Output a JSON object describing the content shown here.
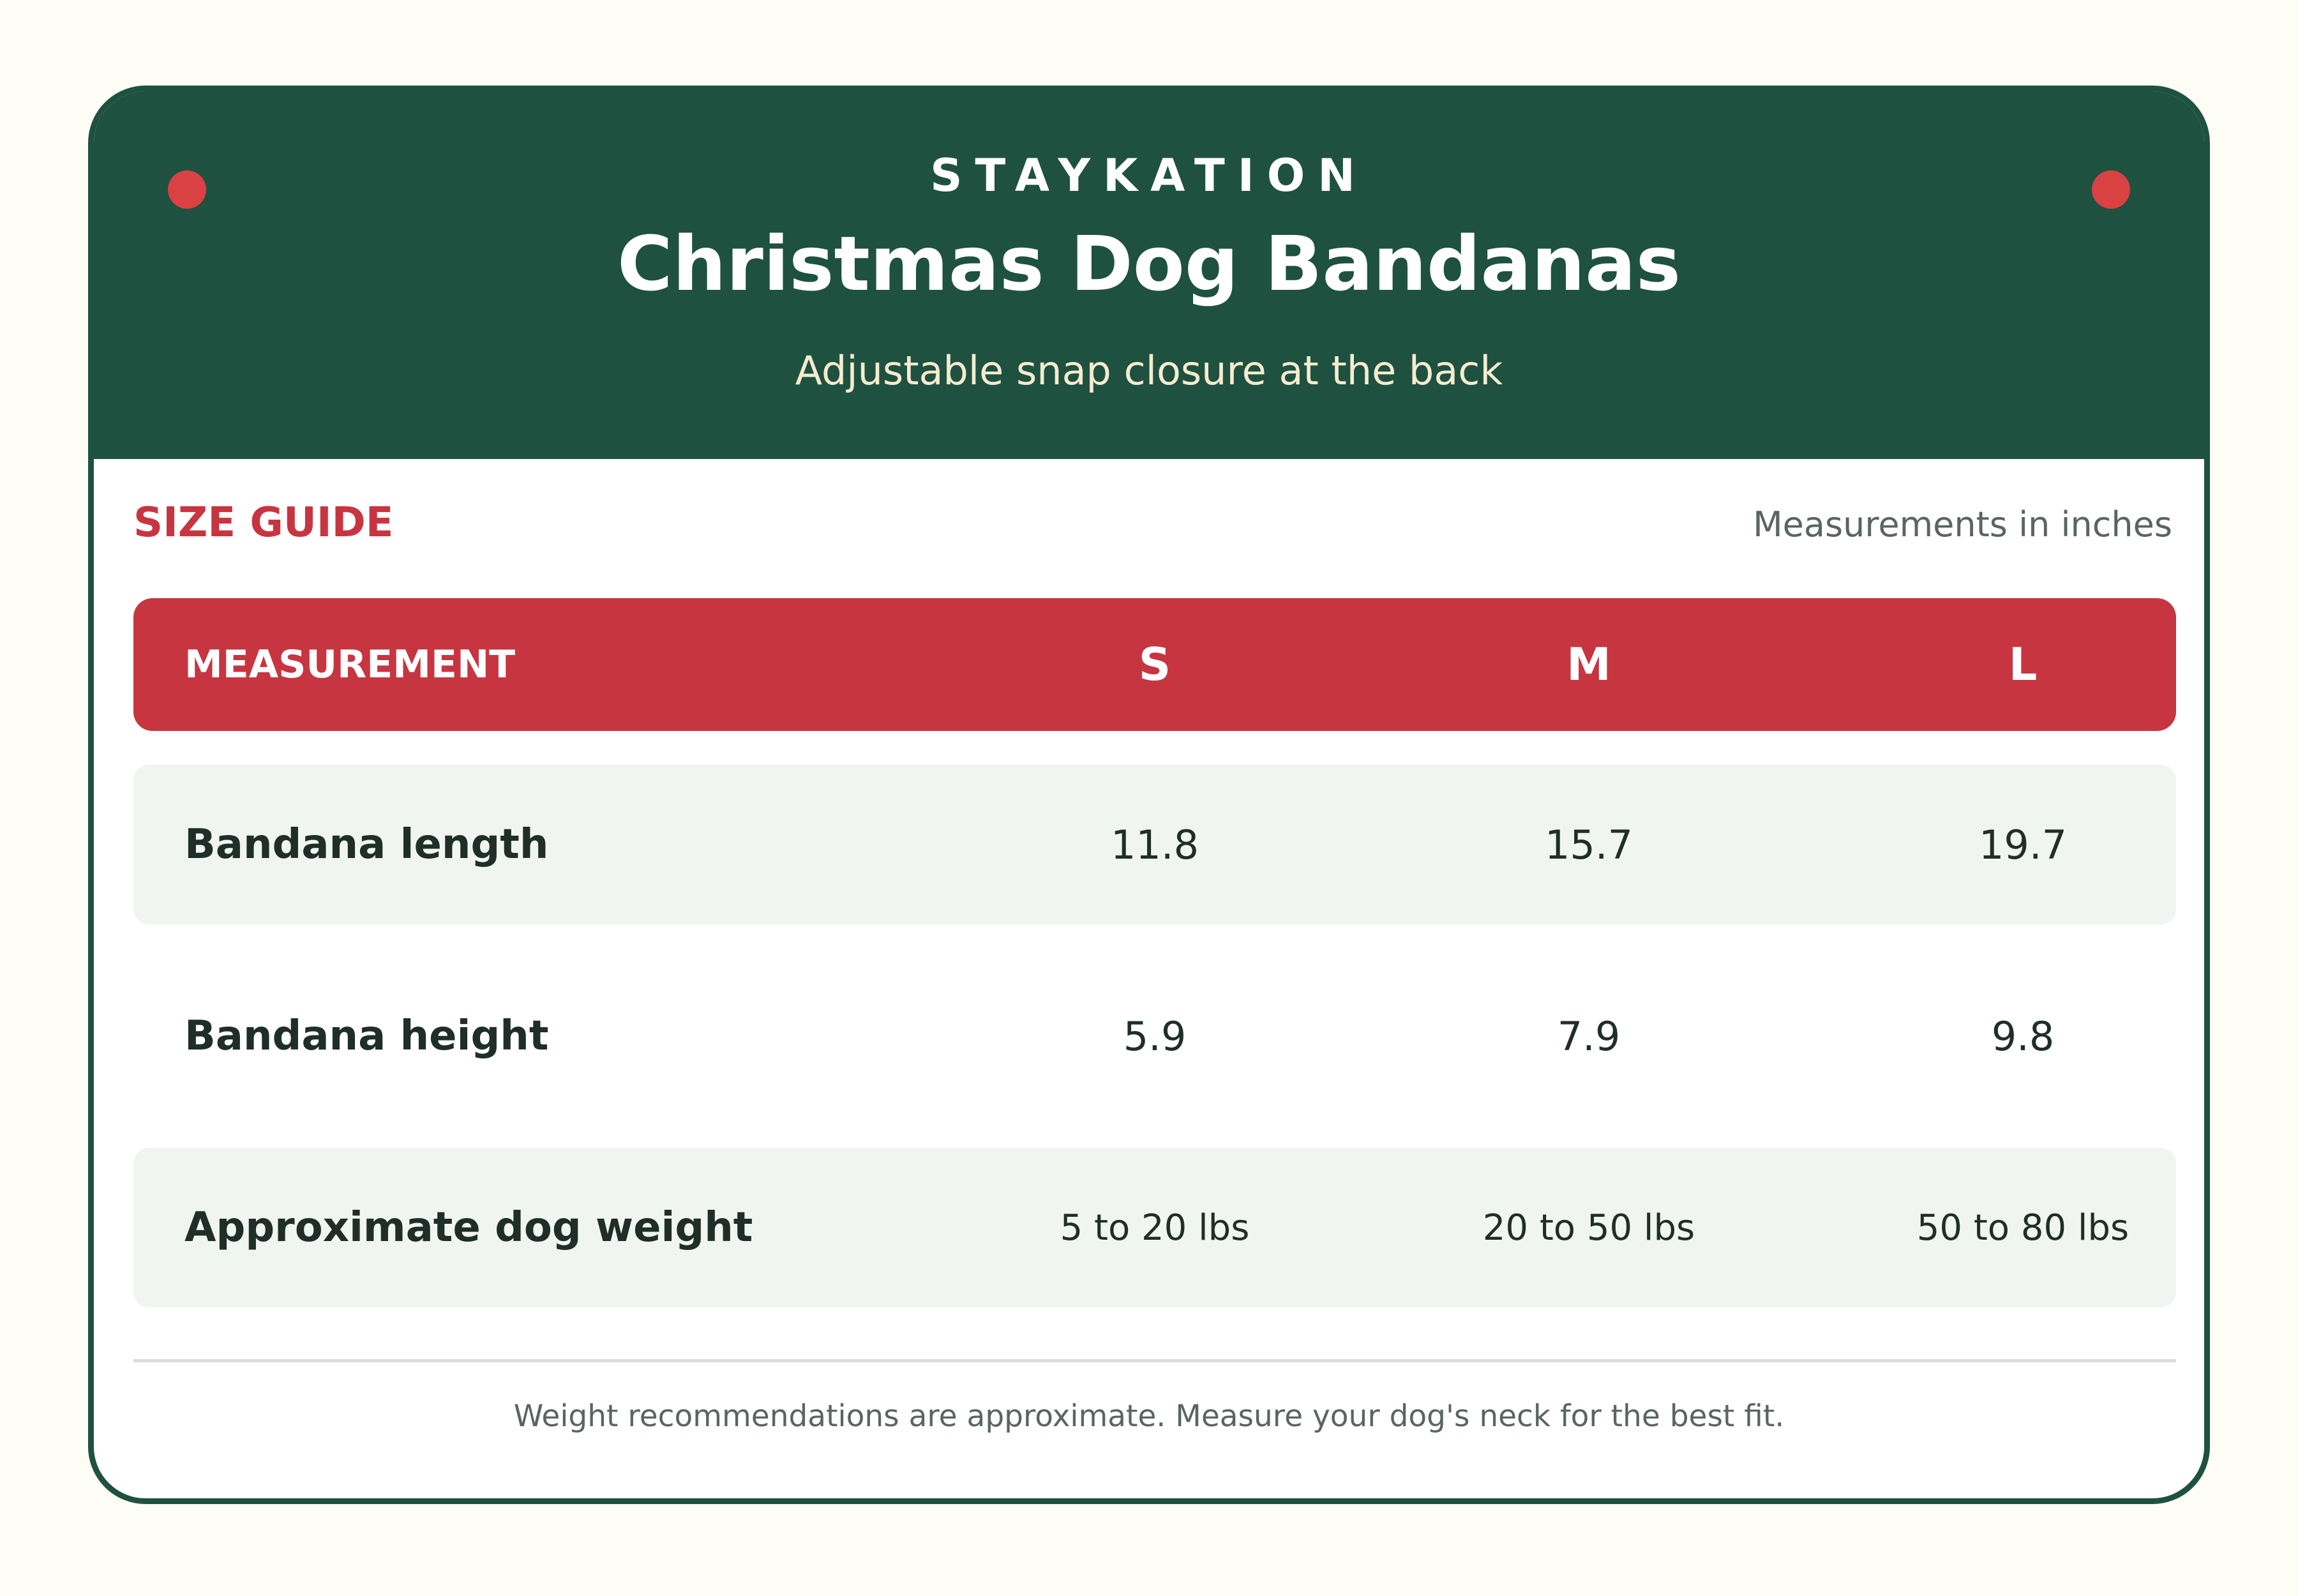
{
  "header": {
    "brand": "STAYKATION",
    "title": "Christmas Dog Bandanas",
    "subtitle": "Adjustable snap closure at the back"
  },
  "section": {
    "label": "SIZE GUIDE",
    "units_note": "Measurements in inches"
  },
  "table": {
    "headers": [
      "MEASUREMENT",
      "S",
      "M",
      "L"
    ],
    "rows": [
      {
        "label": "Bandana length",
        "values": [
          "11.8",
          "15.7",
          "19.7"
        ]
      },
      {
        "label": "Bandana height",
        "values": [
          "5.9",
          "7.9",
          "9.8"
        ]
      },
      {
        "label": "Approximate dog weight",
        "values": [
          "5 to 20 lbs",
          "20 to 50 lbs",
          "50 to 80 lbs"
        ]
      }
    ]
  },
  "footer": {
    "note": "Weight recommendations are approximate. Measure your dog's neck for the best fit."
  },
  "colors": {
    "header_green": "#1f5140",
    "accent_red": "#c73540",
    "dot_red": "#d94143",
    "row_shade": "#f1f5f1",
    "page_background": "#fdfcf5"
  }
}
